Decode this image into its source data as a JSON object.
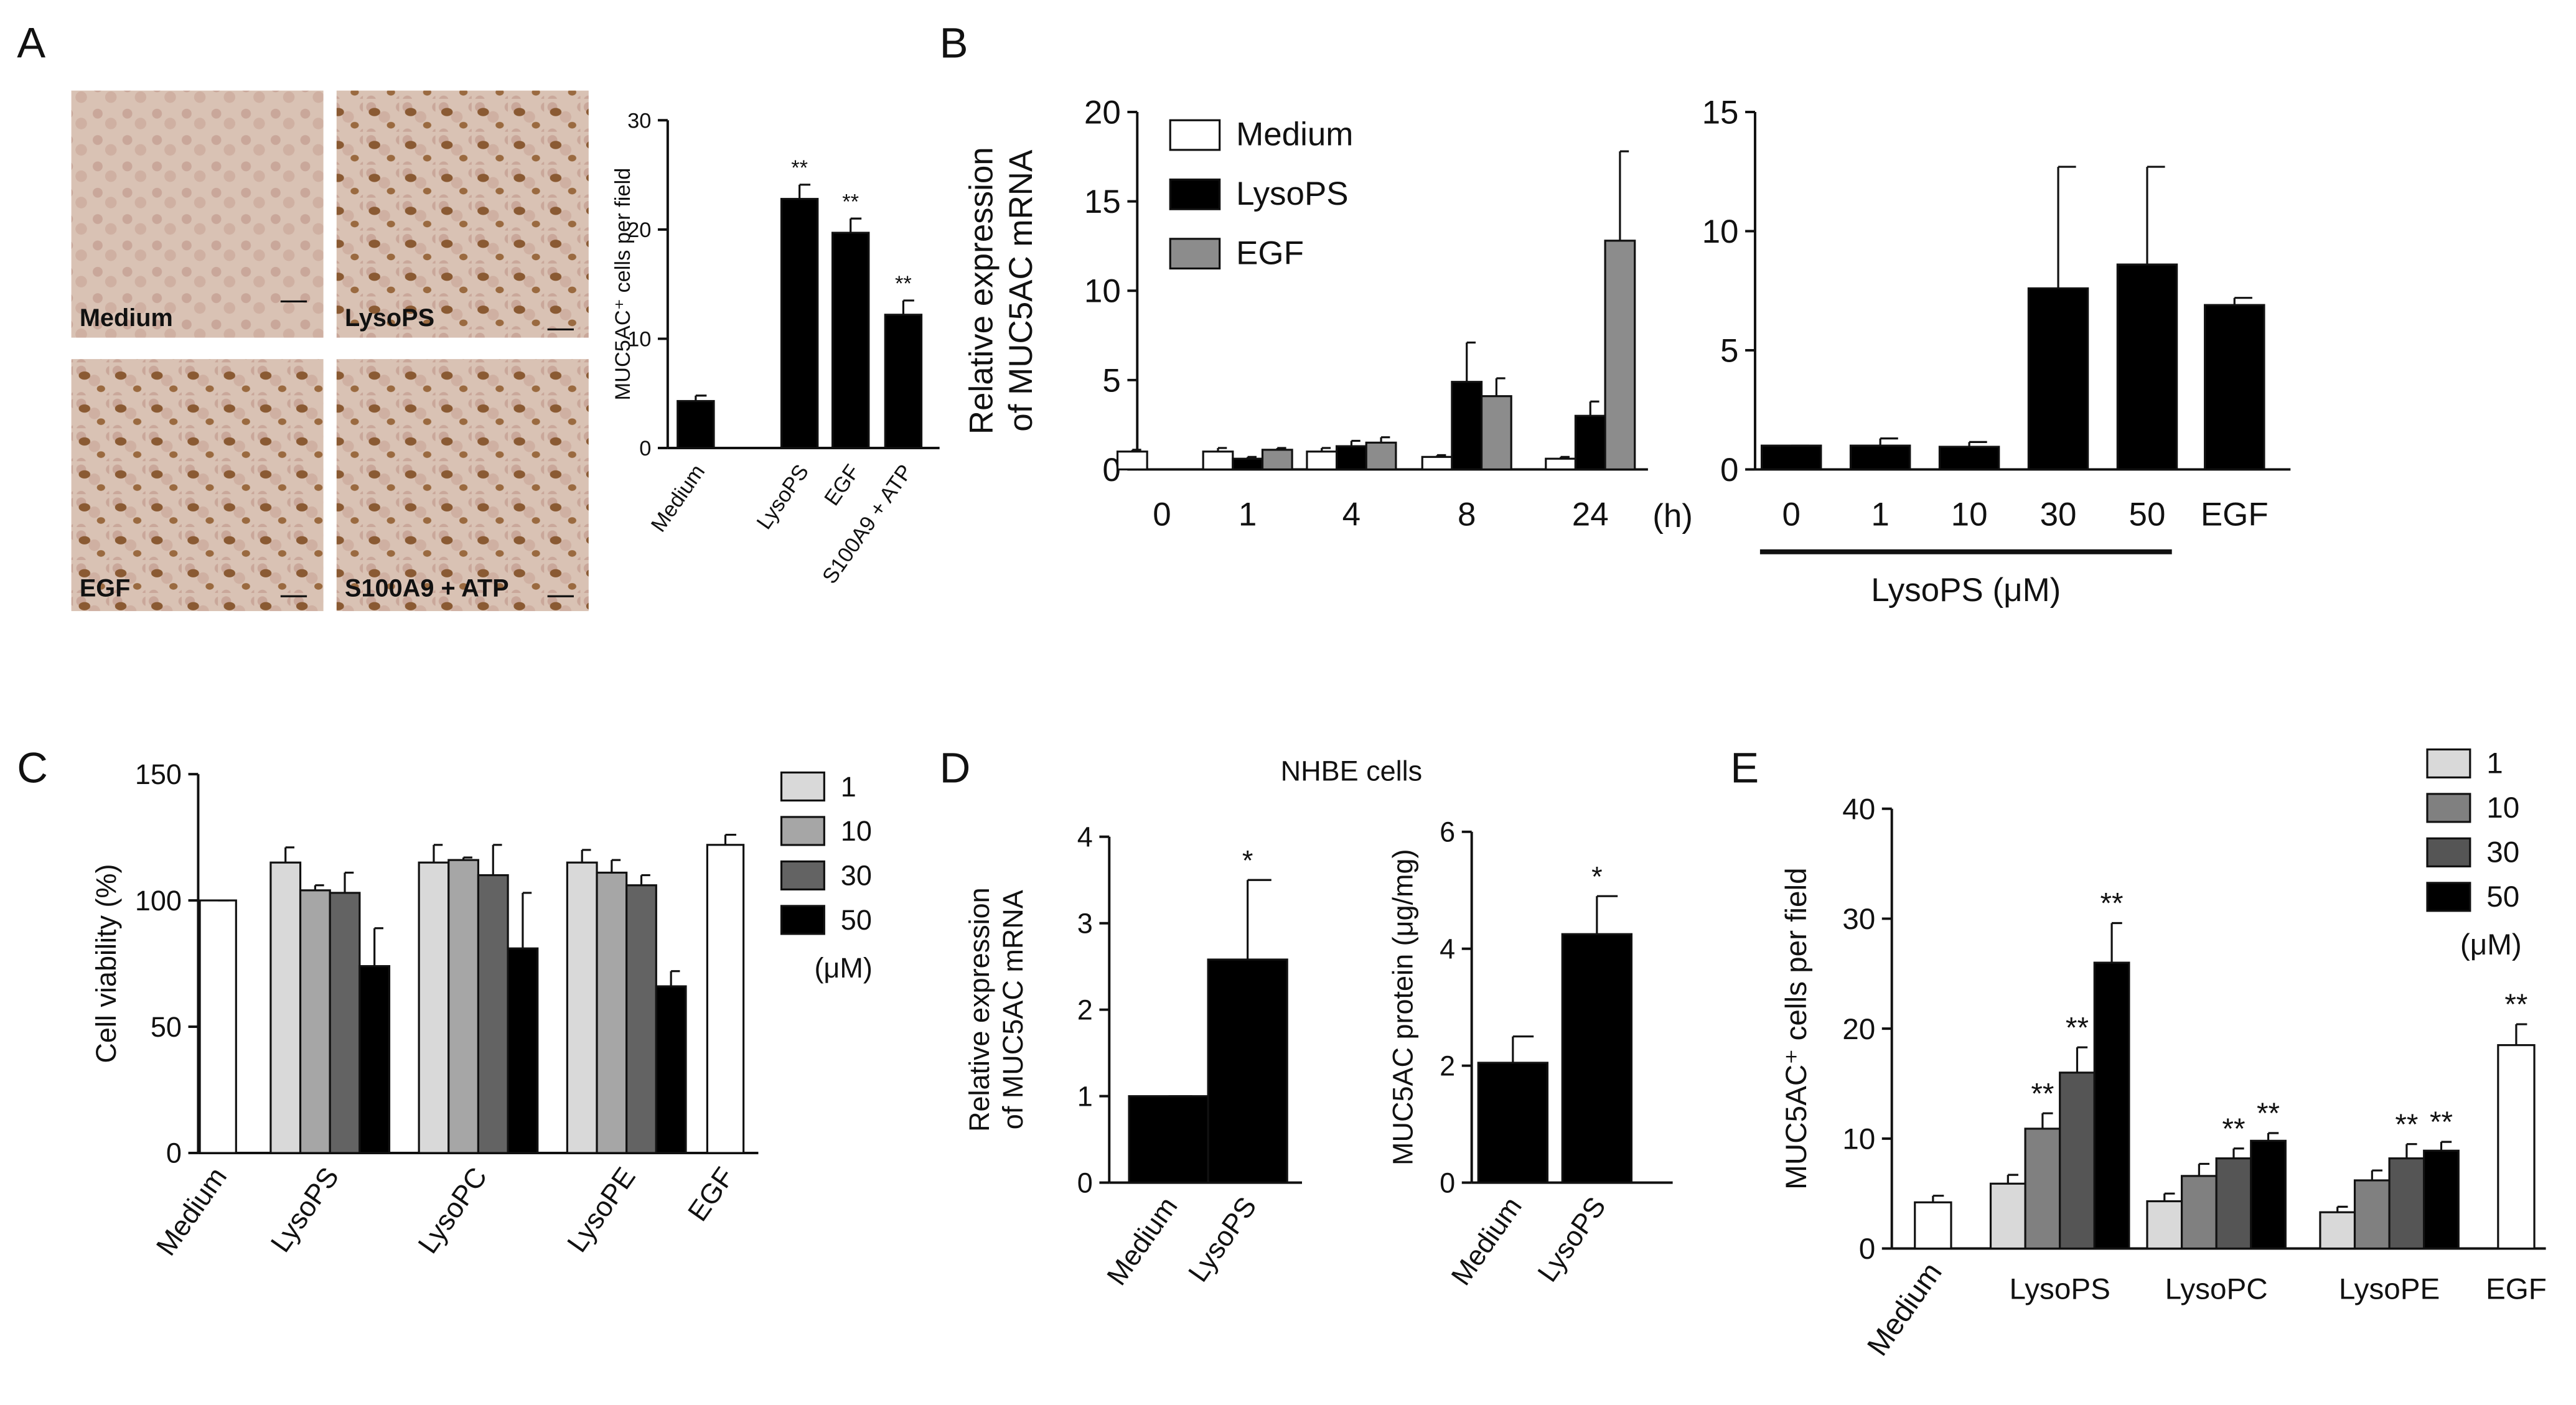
{
  "panel_labels": [
    "A",
    "B",
    "C",
    "D",
    "E"
  ],
  "micrographs": {
    "labels": [
      "Medium",
      "LysoPS",
      "EGF",
      "S100A9 + ATP"
    ]
  },
  "chart_data": [
    {
      "type": "bar",
      "ylabel": "MUC5AC⁺ cells per field",
      "categories": [
        "Medium",
        "LysoPS",
        "EGF",
        "S100A9 + ATP"
      ],
      "values": [
        4.3,
        22.8,
        19.7,
        12.2
      ],
      "errors": [
        0.5,
        1.3,
        1.3,
        1.3
      ],
      "annotations": [
        null,
        "**",
        "**",
        "**"
      ],
      "color": "#000000",
      "ylim": [
        0,
        30
      ],
      "yticks": [
        0,
        10,
        20,
        30
      ]
    },
    {
      "type": "grouped_bar",
      "ylabel": [
        "Relative expression",
        "of MUC5AC mRNA"
      ],
      "categories": [
        "0",
        "1",
        "4",
        "8",
        "24"
      ],
      "xlabel": "(h)",
      "series": [
        {
          "name": "Medium",
          "color": "#ffffff",
          "values": [
            1.0,
            1.0,
            1.0,
            0.7,
            0.6
          ],
          "errors": [
            0.1,
            0.2,
            0.2,
            0.1,
            0.1
          ]
        },
        {
          "name": "LysoPS",
          "color": "#000000",
          "values": [
            null,
            0.6,
            1.3,
            4.9,
            3.0
          ],
          "errors": [
            null,
            0.1,
            0.3,
            2.2,
            0.8
          ]
        },
        {
          "name": "EGF",
          "color": "#8c8c8c",
          "values": [
            null,
            1.1,
            1.5,
            4.1,
            12.8
          ],
          "errors": [
            null,
            0.1,
            0.3,
            1.0,
            5.0
          ]
        }
      ],
      "ylim": [
        0,
        20
      ],
      "yticks": [
        0,
        5,
        10,
        15,
        20
      ]
    },
    {
      "type": "bar",
      "categories": [
        "0",
        "1",
        "10",
        "30",
        "50",
        "EGF"
      ],
      "group_label": "LysoPS (μM)",
      "values": [
        1.0,
        1.0,
        0.95,
        7.6,
        8.6,
        6.9
      ],
      "errors": [
        0,
        0.3,
        0.2,
        5.1,
        4.1,
        0.3
      ],
      "color": "#000000",
      "ylim": [
        0,
        15
      ],
      "yticks": [
        0,
        5,
        10,
        15
      ]
    },
    {
      "type": "grouped_bar",
      "ylabel": "Cell viability (%)",
      "categories": [
        "Medium",
        "LysoPS",
        "LysoPC",
        "LysoPE",
        "EGF"
      ],
      "legend_unit": "(μM)",
      "controls": {
        "color": "#ffffff",
        "values": [
          100,
          null,
          null,
          null,
          122
        ],
        "errors": [
          0,
          null,
          null,
          null,
          4
        ]
      },
      "series": [
        {
          "name": "1",
          "color": "#d9d9d9",
          "values": [
            null,
            115,
            115,
            115,
            null
          ],
          "errors": [
            null,
            6,
            7,
            5,
            null
          ]
        },
        {
          "name": "10",
          "color": "#a6a6a6",
          "values": [
            null,
            104,
            116,
            111,
            null
          ],
          "errors": [
            null,
            2,
            1,
            5,
            null
          ]
        },
        {
          "name": "30",
          "color": "#636363",
          "values": [
            null,
            103,
            110,
            106,
            null
          ],
          "errors": [
            null,
            8,
            12,
            4,
            null
          ]
        },
        {
          "name": "50",
          "color": "#000000",
          "values": [
            null,
            74,
            81,
            66,
            null
          ],
          "errors": [
            null,
            15,
            22,
            6,
            null
          ]
        }
      ],
      "ylim": [
        0,
        150
      ],
      "yticks": [
        0,
        50,
        100,
        150
      ]
    },
    {
      "type": "bar",
      "title": "NHBE cells",
      "ylabel": [
        "Relative expression",
        "of MUC5AC mRNA"
      ],
      "categories": [
        "Medium",
        "LysoPS"
      ],
      "values": [
        1.0,
        2.58
      ],
      "errors": [
        0,
        0.92
      ],
      "annotations": [
        null,
        "*"
      ],
      "color": "#000000",
      "ylim": [
        0,
        4
      ],
      "yticks": [
        0,
        1,
        2,
        3,
        4
      ]
    },
    {
      "type": "bar",
      "ylabel": "MUC5AC protein (μg/mg)",
      "categories": [
        "Medium",
        "LysoPS"
      ],
      "values": [
        2.05,
        4.25
      ],
      "errors": [
        0.45,
        0.65
      ],
      "annotations": [
        null,
        "*"
      ],
      "color": "#000000",
      "ylim": [
        0,
        6
      ],
      "yticks": [
        0,
        2,
        4,
        6
      ]
    },
    {
      "type": "grouped_bar",
      "ylabel": "MUC5AC⁺ cells per field",
      "categories": [
        "Medium",
        "LysoPS",
        "LysoPC",
        "LysoPE",
        "EGF"
      ],
      "legend_unit": "(μM)",
      "controls": {
        "color": "#ffffff",
        "values": [
          4.2,
          null,
          null,
          null,
          18.5
        ],
        "errors": [
          0.6,
          null,
          null,
          null,
          1.9
        ],
        "annotations": [
          null,
          null,
          null,
          null,
          "**"
        ]
      },
      "series": [
        {
          "name": "1",
          "color": "#d9d9d9",
          "values": [
            null,
            5.9,
            4.3,
            3.3,
            null
          ],
          "errors": [
            null,
            0.8,
            0.7,
            0.5,
            null
          ],
          "annotations": [
            null,
            null,
            null,
            null,
            null
          ]
        },
        {
          "name": "10",
          "color": "#808080",
          "values": [
            null,
            10.9,
            6.6,
            6.2,
            null
          ],
          "errors": [
            null,
            1.4,
            1.1,
            0.9,
            null
          ],
          "annotations": [
            null,
            "**",
            null,
            null,
            null
          ]
        },
        {
          "name": "30",
          "color": "#555555",
          "values": [
            null,
            16.0,
            8.2,
            8.2,
            null
          ],
          "errors": [
            null,
            2.3,
            0.9,
            1.3,
            null
          ],
          "annotations": [
            null,
            "**",
            "**",
            "**",
            null
          ]
        },
        {
          "name": "50",
          "color": "#000000",
          "values": [
            null,
            26.0,
            9.8,
            8.9,
            null
          ],
          "errors": [
            null,
            3.6,
            0.7,
            0.8,
            null
          ],
          "annotations": [
            null,
            "**",
            "**",
            "**",
            null
          ]
        }
      ],
      "ylim": [
        0,
        40
      ],
      "yticks": [
        0,
        10,
        20,
        30,
        40
      ]
    }
  ]
}
